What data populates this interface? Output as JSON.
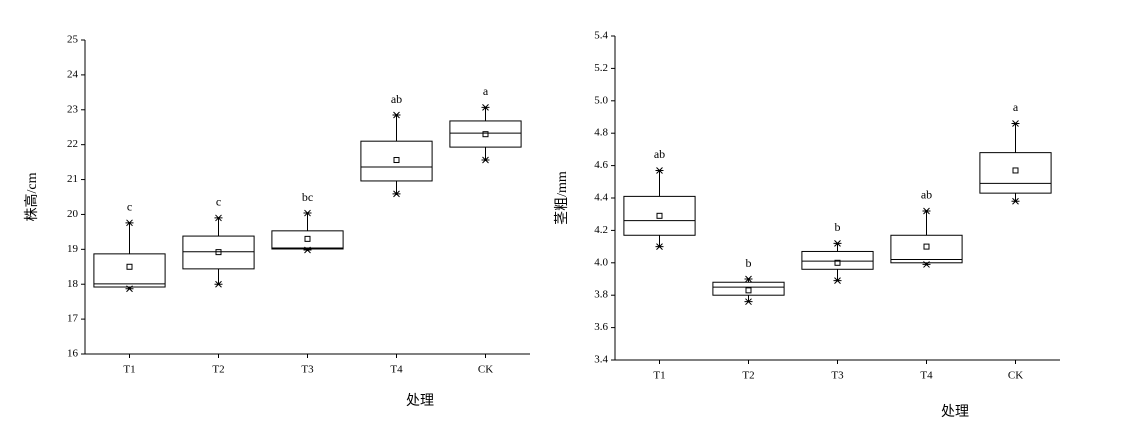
{
  "chart_data": [
    {
      "type": "box",
      "ylabel": "株高/cm",
      "xlabel": "处理",
      "categories": [
        "T1",
        "T2",
        "T3",
        "T4",
        "CK"
      ],
      "whislo": [
        17.87,
        18.0,
        18.98,
        20.59,
        21.56
      ],
      "q1": [
        17.92,
        18.44,
        19.01,
        20.96,
        21.93
      ],
      "med": [
        18.01,
        18.93,
        19.04,
        21.36,
        22.33
      ],
      "q3": [
        18.87,
        19.38,
        19.53,
        22.1,
        22.68
      ],
      "whishi": [
        19.76,
        19.9,
        20.04,
        22.85,
        23.07
      ],
      "mean": [
        18.5,
        18.92,
        19.3,
        21.56,
        22.3
      ],
      "letters": [
        "c",
        "c",
        "bc",
        "ab",
        "a"
      ],
      "ylim": [
        16,
        25
      ],
      "yticks": [
        16,
        17,
        18,
        19,
        20,
        21,
        22,
        23,
        24,
        25
      ]
    },
    {
      "type": "box",
      "ylabel": "茎粗/mm",
      "xlabel": "处理",
      "categories": [
        "T1",
        "T2",
        "T3",
        "T4",
        "CK"
      ],
      "whislo": [
        4.1,
        3.76,
        3.89,
        3.99,
        4.38
      ],
      "q1": [
        4.17,
        3.8,
        3.96,
        4.0,
        4.43
      ],
      "med": [
        4.26,
        3.85,
        4.01,
        4.02,
        4.49
      ],
      "q3": [
        4.41,
        3.88,
        4.07,
        4.17,
        4.68
      ],
      "whishi": [
        4.57,
        3.9,
        4.12,
        4.32,
        4.86
      ],
      "mean": [
        4.29,
        3.83,
        4.0,
        4.1,
        4.57
      ],
      "letters": [
        "ab",
        "b",
        "b",
        "ab",
        "a"
      ],
      "ylim": [
        3.4,
        5.4
      ],
      "yticks": [
        3.4,
        3.6,
        3.8,
        {
          "value": 4,
          "label": "4.0"
        },
        4.2,
        4.4,
        4.6,
        4.8,
        {
          "value": 5,
          "label": "5.0"
        },
        5.2,
        5.4
      ]
    }
  ]
}
